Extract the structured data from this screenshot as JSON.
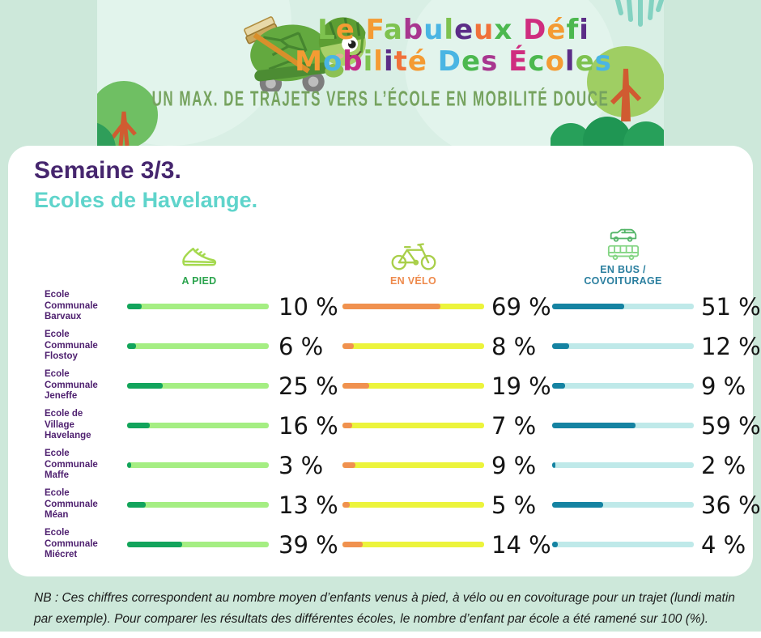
{
  "banner": {
    "title_line1": [
      {
        "c": "L",
        "color": "#7ec24f"
      },
      {
        "c": "e",
        "color": "#f49b33"
      },
      {
        "c": " "
      },
      {
        "c": "F",
        "color": "#f49b33"
      },
      {
        "c": "a",
        "color": "#7ec24f"
      },
      {
        "c": "b",
        "color": "#a8368f"
      },
      {
        "c": "u",
        "color": "#4ab5e3"
      },
      {
        "c": "l",
        "color": "#7ec24f"
      },
      {
        "c": "e",
        "color": "#5c2d87"
      },
      {
        "c": "u",
        "color": "#f0713a"
      },
      {
        "c": "x",
        "color": "#4cb84f"
      },
      {
        "c": " "
      },
      {
        "c": "D",
        "color": "#cf2d7f"
      },
      {
        "c": "é",
        "color": "#f49b33"
      },
      {
        "c": "f",
        "color": "#4cb84f"
      },
      {
        "c": "i",
        "color": "#5c2d87"
      }
    ],
    "title_line2": [
      {
        "c": "M",
        "color": "#f49b33"
      },
      {
        "c": "o",
        "color": "#4ab5e3"
      },
      {
        "c": "b",
        "color": "#c42b88"
      },
      {
        "c": "i",
        "color": "#7ec24f"
      },
      {
        "c": "l",
        "color": "#f49b33"
      },
      {
        "c": "i",
        "color": "#5c2d87"
      },
      {
        "c": "t",
        "color": "#f0713a"
      },
      {
        "c": "é",
        "color": "#f49b33"
      },
      {
        "c": " "
      },
      {
        "c": "D",
        "color": "#4ab5e3"
      },
      {
        "c": "e",
        "color": "#4cb84f"
      },
      {
        "c": "s",
        "color": "#a8368f"
      },
      {
        "c": " "
      },
      {
        "c": "É",
        "color": "#cf2d7f"
      },
      {
        "c": "c",
        "color": "#4cb84f"
      },
      {
        "c": "o",
        "color": "#f49b33"
      },
      {
        "c": "l",
        "color": "#5c2d87"
      },
      {
        "c": "e",
        "color": "#7ec24f"
      },
      {
        "c": "s",
        "color": "#4ab5e3"
      }
    ],
    "subtitle": "UN MAX. DE TRAJETS VERS L’ÉCOLE EN MOBILITÉ DOUCE"
  },
  "card": {
    "heading": "Semaine 3/3.",
    "subheading": "Ecoles de Havelange."
  },
  "columns": [
    {
      "label": "A PIED",
      "color": "#2ca44e",
      "icon": "shoe-icon"
    },
    {
      "label": "EN VÉLO",
      "color": "#ee8a4c",
      "icon": "bicycle-icon"
    },
    {
      "label": "EN BUS / COVOITURAGE",
      "color": "#2b7f9f",
      "icon": "bus-carpool-icon"
    }
  ],
  "chart_data": {
    "type": "bar",
    "categories": [
      "Ecole Communale Barvaux",
      "Ecole Communale Flostoy",
      "Ecole Communale Jeneffe",
      "Ecole de Village Havelange",
      "Ecole Communale Maffe",
      "Ecole Communale Méan",
      "Ecole Communale Miécret"
    ],
    "series": [
      {
        "name": "A PIED",
        "values": [
          10,
          6,
          25,
          16,
          3,
          13,
          39
        ],
        "fill_color": "#12a45c",
        "track_color": "#a5ee83"
      },
      {
        "name": "EN VÉLO",
        "values": [
          69,
          8,
          19,
          7,
          9,
          5,
          14
        ],
        "fill_color": "#f0914f",
        "track_color": "#ecf43c"
      },
      {
        "name": "EN BUS / COVOITURAGE",
        "values": [
          51,
          12,
          9,
          59,
          2,
          36,
          4
        ],
        "fill_color": "#1583a2",
        "track_color": "#bfe9e9"
      }
    ],
    "unit": "%",
    "xlim": [
      0,
      100
    ],
    "grid": false,
    "legend_position": "column-headers"
  },
  "note": "NB : Ces chiffres correspondent au nombre moyen d’enfants venus à pied, à vélo ou en covoiturage pour un trajet (lundi matin par exemple). Pour comparer les résultats des différentes écoles, le nombre d’enfant par école a été ramené sur 100 (%)."
}
